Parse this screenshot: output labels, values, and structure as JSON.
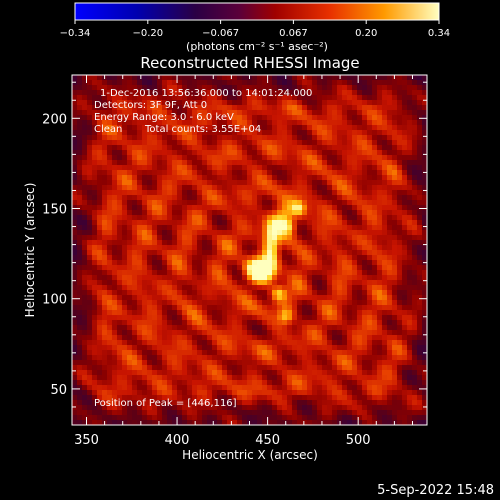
{
  "chart_data": {
    "type": "heatmap",
    "title": "Reconstructed RHESSI Image",
    "xlabel": "Heliocentric X (arcsec)",
    "ylabel": "Heliocentric Y (arcsec)",
    "xlim": [
      342,
      538
    ],
    "ylim": [
      30,
      224
    ],
    "x_ticks": [
      350,
      400,
      450,
      500
    ],
    "y_ticks": [
      50,
      100,
      150,
      200
    ],
    "colorbar": {
      "label": "(photons cm⁻² s⁻¹ asec⁻²)",
      "ticks": [
        "−0.34",
        "−0.20",
        "−0.067",
        "0.067",
        "0.20",
        "0.34"
      ],
      "range": [
        -0.34,
        0.34
      ]
    },
    "annotations": {
      "time_range": "1-Dec-2016 13:56:36.000 to 14:01:24.000",
      "detectors": "Detectors: 3F 9F, Att 0",
      "energy": "Energy Range: 3.0 - 6.0 keV",
      "method": "Clean",
      "counts": "Total counts: 3.55E+04",
      "peak": "Position of Peak = [446,116]"
    },
    "peak": [
      446,
      116
    ],
    "sources": [
      {
        "x": 446,
        "y": 116,
        "sx": 6,
        "sy": 5,
        "amp": 0.34
      },
      {
        "x": 452,
        "y": 130,
        "sx": 3,
        "sy": 9,
        "amp": 0.24
      },
      {
        "x": 458,
        "y": 145,
        "sx": 4,
        "sy": 5,
        "amp": 0.21
      },
      {
        "x": 467,
        "y": 150,
        "sx": 3,
        "sy": 3,
        "amp": 0.18
      },
      {
        "x": 456,
        "y": 103,
        "sx": 3,
        "sy": 3,
        "amp": 0.19
      },
      {
        "x": 460,
        "y": 90,
        "sx": 3,
        "sy": 3,
        "amp": 0.16
      },
      {
        "x": 462,
        "y": 140,
        "sx": 3,
        "sy": 3,
        "amp": 0.15
      }
    ],
    "background_level": 0.1
  },
  "footer": {
    "date": "5-Sep-2022 15:48"
  }
}
